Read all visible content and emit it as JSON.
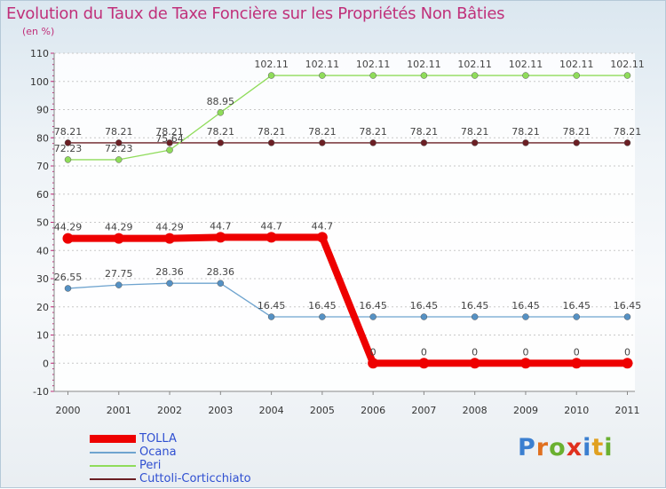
{
  "title": "Evolution du Taux de Taxe Foncière sur les Propriétés Non Bâties",
  "subtitle": "(en %)",
  "logo_text": "Proxiti",
  "chart_data": {
    "type": "line",
    "x": [
      "2000",
      "2001",
      "2002",
      "2003",
      "2004",
      "2005",
      "2006",
      "2007",
      "2008",
      "2009",
      "2010",
      "2011"
    ],
    "ylim": [
      -10,
      110
    ],
    "yticks": [
      -10,
      0,
      10,
      20,
      30,
      40,
      50,
      60,
      70,
      80,
      90,
      100,
      110
    ],
    "series": [
      {
        "name": "Cuttoli-Corticchiato",
        "color": "#6b1f24",
        "values": [
          78.21,
          78.21,
          78.21,
          78.21,
          78.21,
          78.21,
          78.21,
          78.21,
          78.21,
          78.21,
          78.21,
          78.21
        ],
        "labels": [
          "78.21",
          "78.21",
          "78.21",
          "78.21",
          "78.21",
          "78.21",
          "78.21",
          "78.21",
          "78.21",
          "78.21",
          "78.21",
          "78.21"
        ]
      },
      {
        "name": "Peri",
        "color": "#8fdc5a",
        "values": [
          72.23,
          72.23,
          75.64,
          88.95,
          102.11,
          102.11,
          102.11,
          102.11,
          102.11,
          102.11,
          102.11,
          102.11
        ],
        "labels": [
          "72.23",
          "72.23",
          "75.64",
          "88.95",
          "102.11",
          "102.11",
          "102.11",
          "102.11",
          "102.11",
          "102.11",
          "102.11",
          "102.11"
        ]
      },
      {
        "name": "Ocana",
        "color": "#6fa4cf",
        "values": [
          26.55,
          27.75,
          28.36,
          28.36,
          16.45,
          16.45,
          16.45,
          16.45,
          16.45,
          16.45,
          16.45,
          16.45
        ],
        "labels": [
          "26.55",
          "27.75",
          "28.36",
          "28.36",
          "16.45",
          "16.45",
          "16.45",
          "16.45",
          "16.45",
          "16.45",
          "16.45",
          "16.45"
        ]
      },
      {
        "name": "TOLLA",
        "color": "#ee0000",
        "values": [
          44.29,
          44.29,
          44.29,
          44.7,
          44.7,
          44.7,
          0,
          0,
          0,
          0,
          0,
          0
        ],
        "labels": [
          "44.29",
          "44.29",
          "44.29",
          "44.7",
          "44.7",
          "44.7",
          "0",
          "0",
          "0",
          "0",
          "0",
          "0"
        ]
      }
    ],
    "legend": [
      "TOLLA",
      "Ocana",
      "Peri",
      "Cuttoli-Corticchiato"
    ]
  }
}
